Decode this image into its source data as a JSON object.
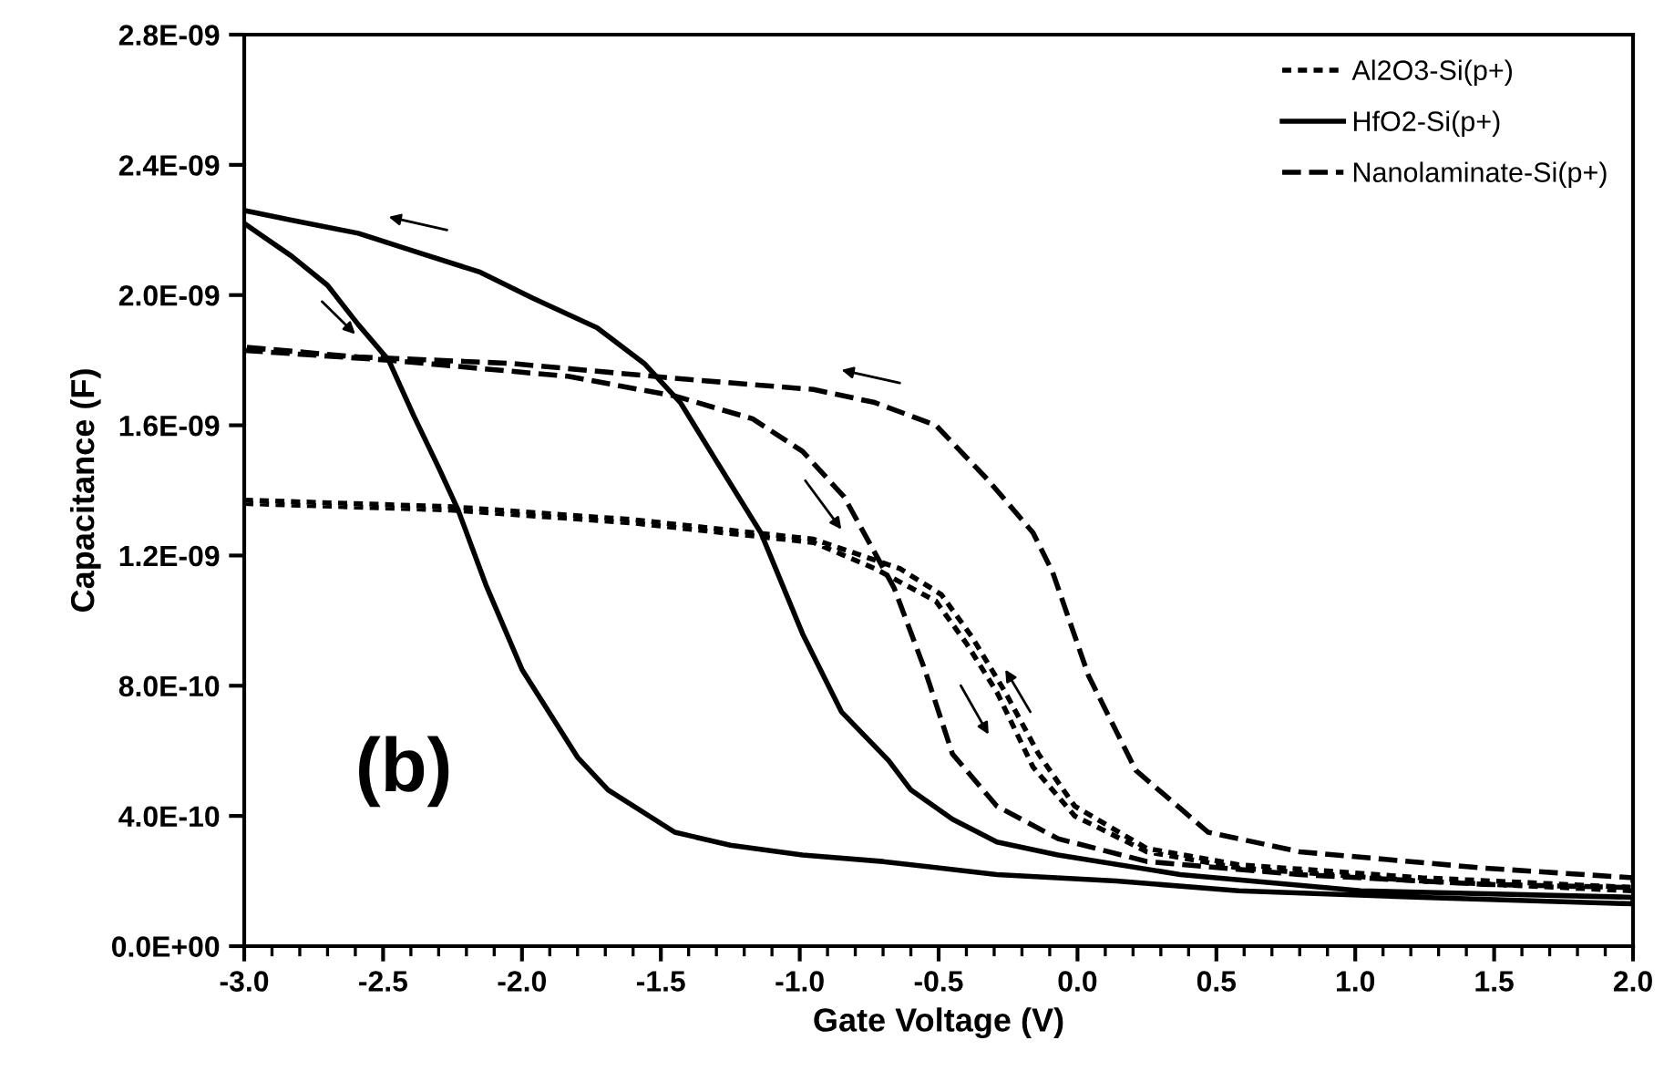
{
  "chart_data": {
    "type": "line",
    "xlabel": "Gate Voltage (V)",
    "ylabel": "Capacitance (F)",
    "xlim": [
      -3,
      2
    ],
    "ylim": [
      0,
      2.8e-09
    ],
    "xticks": [
      {
        "value": -3,
        "label": "-3.0"
      },
      {
        "value": -2.5,
        "label": "-2.5"
      },
      {
        "value": -2,
        "label": "-2.0"
      },
      {
        "value": -1.5,
        "label": "-1.5"
      },
      {
        "value": -1,
        "label": "-1.0"
      },
      {
        "value": -0.5,
        "label": "-0.5"
      },
      {
        "value": 0,
        "label": "0.0"
      },
      {
        "value": 0.5,
        "label": "0.5"
      },
      {
        "value": 1,
        "label": "1.0"
      },
      {
        "value": 1.5,
        "label": "1.5"
      },
      {
        "value": 2,
        "label": "2.0"
      }
    ],
    "yticks": [
      {
        "value": 0,
        "label": "0.0E+00"
      },
      {
        "value": 4e-10,
        "label": "4.0E-10"
      },
      {
        "value": 8e-10,
        "label": "8.0E-10"
      },
      {
        "value": 1.2e-09,
        "label": "1.2E-09"
      },
      {
        "value": 1.6e-09,
        "label": "1.6E-09"
      },
      {
        "value": 2e-09,
        "label": "2.0E-09"
      },
      {
        "value": 2.4e-09,
        "label": "2.4E-09"
      },
      {
        "value": 2.8e-09,
        "label": "2.8E-09"
      }
    ],
    "grid": false,
    "legend": "top right",
    "marker": "none",
    "annotations": [
      "(b)"
    ],
    "series": [
      {
        "name": "Al2O3-Si(p+)",
        "color": "#000000",
        "line_style": "dotted",
        "x": [
          -3,
          -2.26,
          -1.6,
          -0.95,
          -0.73,
          -0.51,
          -0.4,
          -0.29,
          -0.16,
          -0.01,
          0.25,
          0.58,
          1.24,
          2,
          2,
          1.24,
          0.58,
          0.25,
          -0.01,
          -0.14,
          -0.26,
          -0.38,
          -0.49,
          -0.64,
          -0.95,
          -1.6,
          -2.26,
          -3
        ],
        "values": [
          1.36e-09,
          1.34e-09,
          1.3e-09,
          1.24e-09,
          1.16e-09,
          1.06e-09,
          9.3e-10,
          7.8e-10,
          5.5e-10,
          4e-10,
          2.9e-10,
          2.4e-10,
          2e-10,
          1.7e-10,
          1.8e-10,
          2.1e-10,
          2.5e-10,
          3e-10,
          4.3e-10,
          5.9e-10,
          7.8e-10,
          9.5e-10,
          1.08e-09,
          1.16e-09,
          1.25e-09,
          1.31e-09,
          1.35e-09,
          1.37e-09
        ]
      },
      {
        "name": "HfO2-Si(p+)",
        "color": "#000000",
        "line_style": "solid",
        "x": [
          -3,
          -2.83,
          -2.7,
          -2.59,
          -2.48,
          -2.39,
          -2.3,
          -2.23,
          -2.13,
          -2.0,
          -1.8,
          -1.69,
          -1.45,
          -1.25,
          -0.99,
          -0.7,
          -0.29,
          0.14,
          0.58,
          1.24,
          2,
          2,
          1.02,
          0.37,
          -0.07,
          -0.29,
          -0.45,
          -0.6,
          -0.68,
          -0.85,
          -0.99,
          -1.14,
          -1.3,
          -1.43,
          -1.56,
          -1.73,
          -1.96,
          -2.15,
          -2.37,
          -2.59,
          -2.83,
          -3
        ],
        "values": [
          2.22e-09,
          2.12e-09,
          2.03e-09,
          1.91e-09,
          1.8e-09,
          1.63e-09,
          1.47e-09,
          1.34e-09,
          1.11e-09,
          8.5e-10,
          5.8e-10,
          4.8e-10,
          3.5e-10,
          3.1e-10,
          2.8e-10,
          2.6e-10,
          2.2e-10,
          2e-10,
          1.7e-10,
          1.5e-10,
          1.3e-10,
          1.5e-10,
          1.7e-10,
          2.2e-10,
          2.8e-10,
          3.2e-10,
          3.9e-10,
          4.8e-10,
          5.7e-10,
          7.2e-10,
          9.6e-10,
          1.27e-09,
          1.49e-09,
          1.67e-09,
          1.79e-09,
          1.9e-09,
          1.99e-09,
          2.07e-09,
          2.13e-09,
          2.19e-09,
          2.23e-09,
          2.26e-09
        ]
      },
      {
        "name": "Nanolaminate-Si(p+)",
        "color": "#000000",
        "line_style": "dashed",
        "x": [
          -3,
          -2.48,
          -1.83,
          -1.45,
          -1.17,
          -0.99,
          -0.84,
          -0.75,
          -0.66,
          -0.55,
          -0.45,
          -0.29,
          -0.07,
          0.25,
          0.8,
          1.46,
          2,
          2,
          1.46,
          0.8,
          0.47,
          0.21,
          0.04,
          -0.09,
          -0.16,
          -0.32,
          -0.51,
          -0.73,
          -0.95,
          -1.39,
          -2.04,
          -2.59,
          -3
        ],
        "values": [
          1.83e-09,
          1.8e-09,
          1.75e-09,
          1.69e-09,
          1.62e-09,
          1.52e-09,
          1.38e-09,
          1.24e-09,
          1.1e-09,
          8.5e-10,
          5.9e-10,
          4.3e-10,
          3.3e-10,
          2.6e-10,
          2.2e-10,
          1.9e-10,
          1.8e-10,
          2.1e-10,
          2.4e-10,
          2.9e-10,
          3.5e-10,
          5.4e-10,
          8.3e-10,
          1.15e-09,
          1.27e-09,
          1.43e-09,
          1.6e-09,
          1.67e-09,
          1.71e-09,
          1.74e-09,
          1.79e-09,
          1.81e-09,
          1.84e-09
        ]
      }
    ]
  }
}
